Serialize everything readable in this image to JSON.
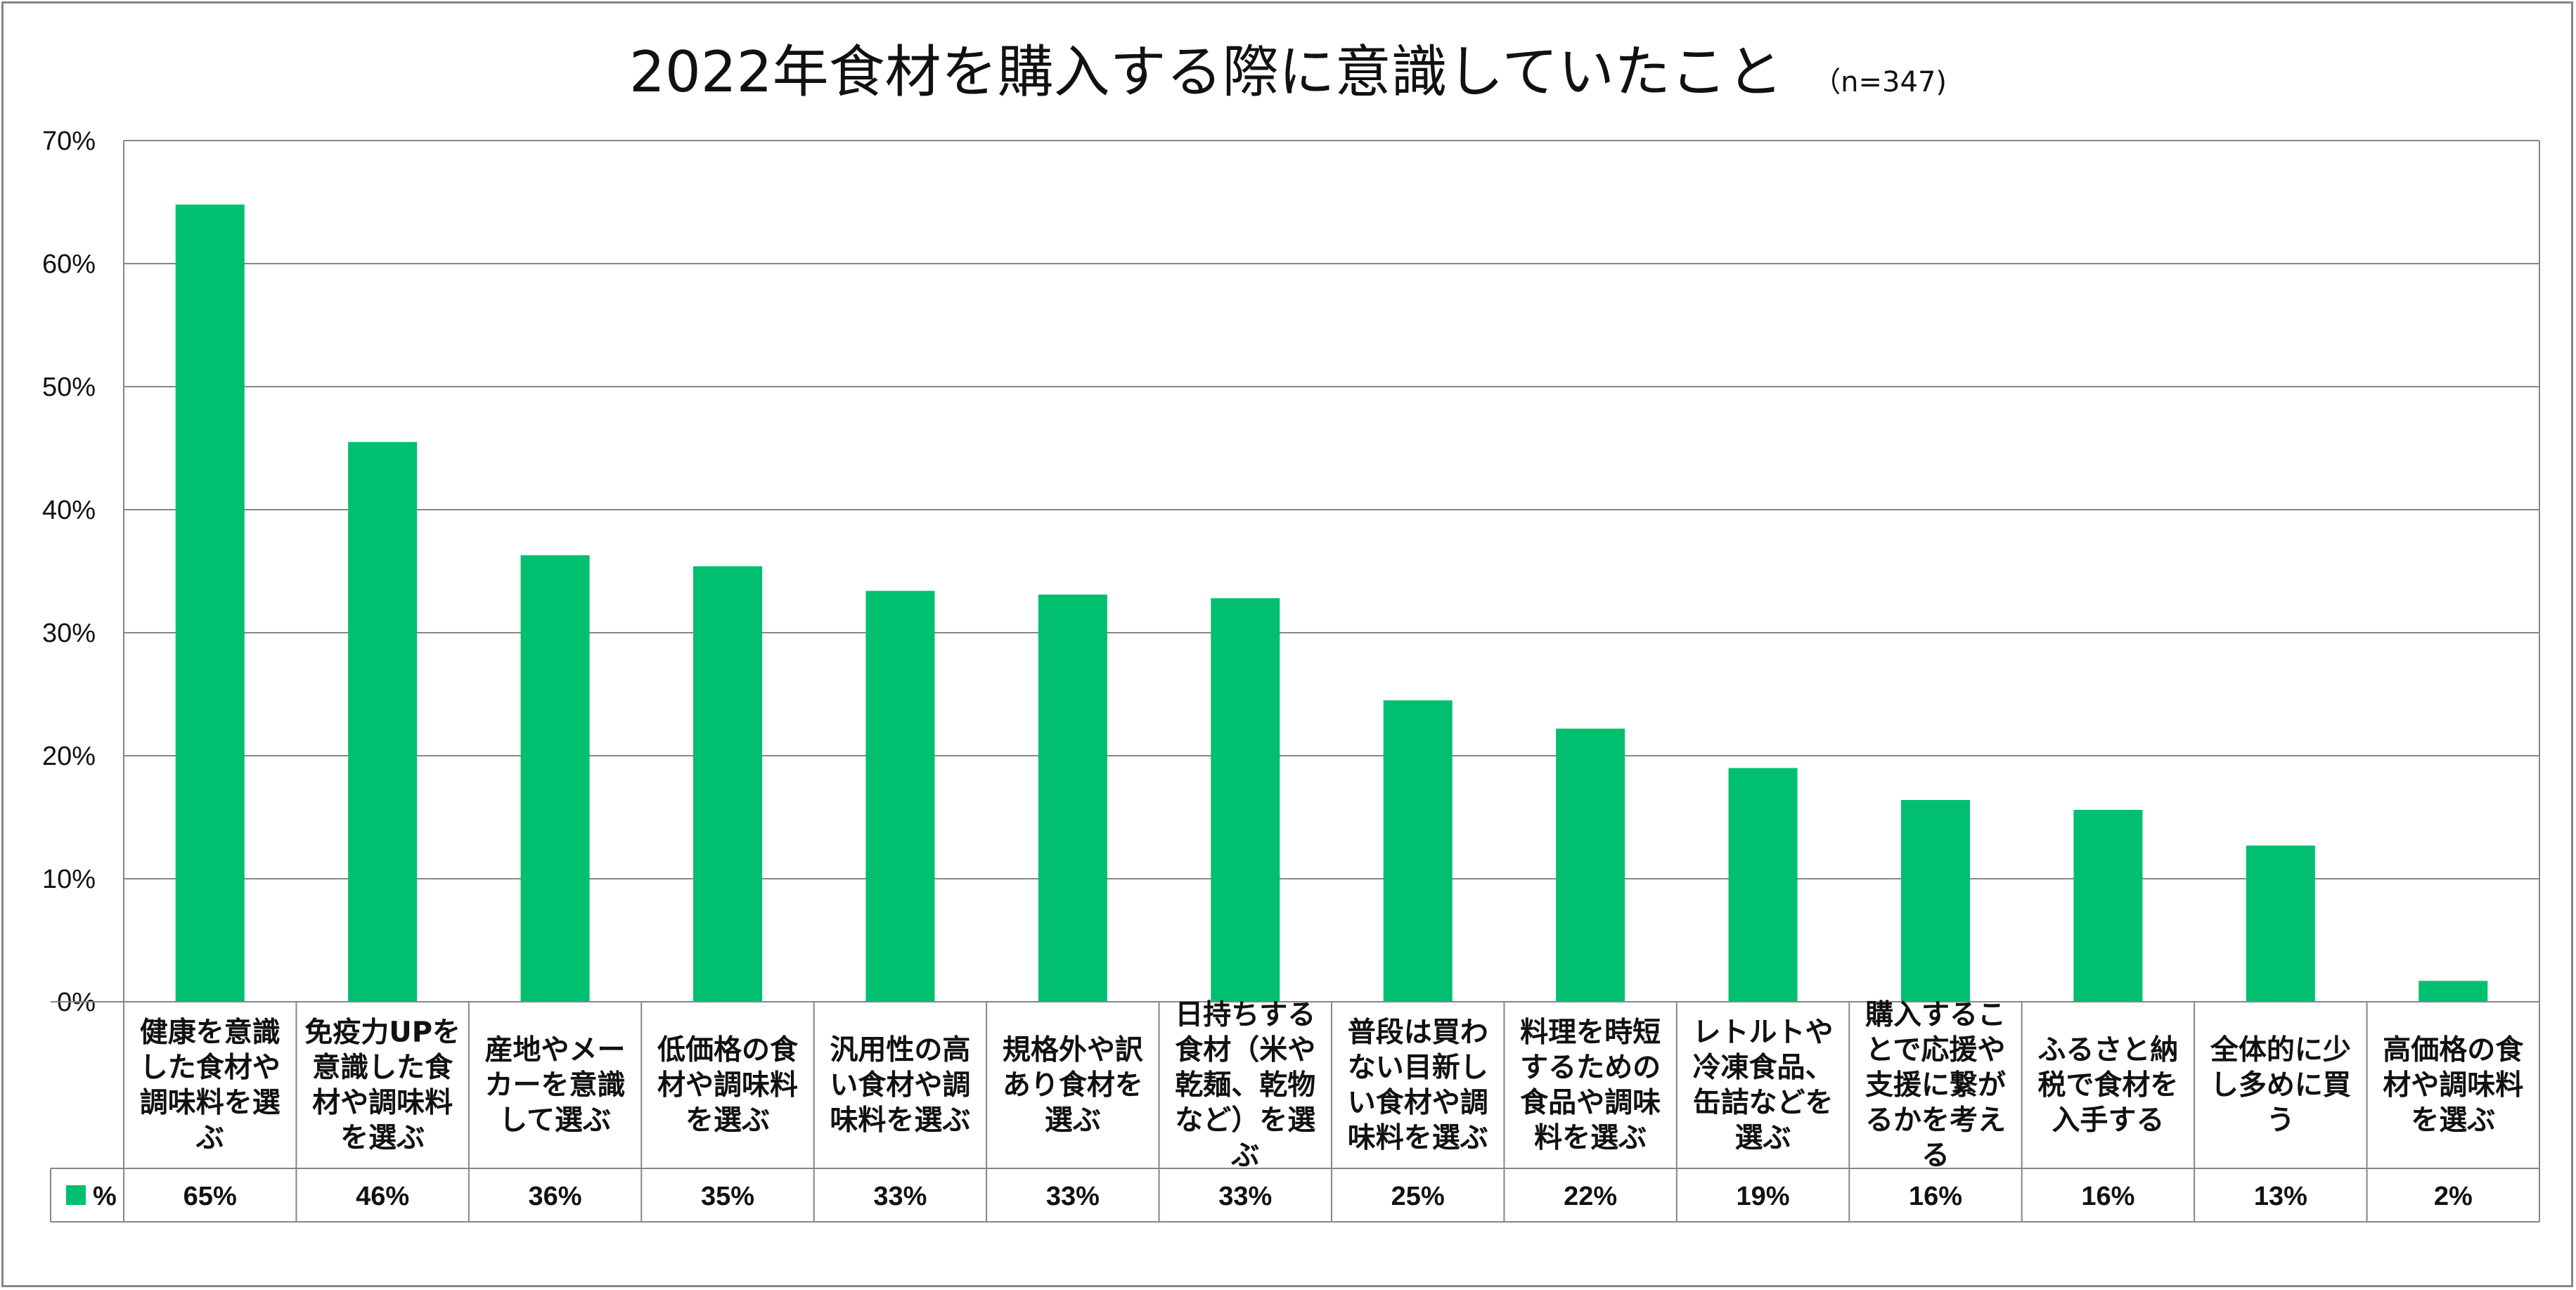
{
  "chart_data": {
    "type": "bar",
    "title": "2022年食材を購入する際に意識していたこと",
    "subtitle": "（n=347)",
    "ylim": [
      0,
      70
    ],
    "yticks": [
      "0%",
      "10%",
      "20%",
      "30%",
      "40%",
      "50%",
      "60%",
      "70%"
    ],
    "series": [
      {
        "name": "%",
        "color": "#00BF6F",
        "values": [
          64.8,
          45.5,
          36.3,
          35.4,
          33.4,
          33.1,
          32.8,
          24.5,
          22.2,
          19.0,
          16.4,
          15.6,
          12.7,
          1.7
        ],
        "labels": [
          "65%",
          "46%",
          "36%",
          "35%",
          "33%",
          "33%",
          "33%",
          "25%",
          "22%",
          "19%",
          "16%",
          "16%",
          "13%",
          "2%"
        ]
      }
    ],
    "categories": [
      "健康を意識した食材や調味料を選ぶ",
      "免疫力UPを意識した食材や調味料を選ぶ",
      "産地やメーカーを意識して選ぶ",
      "低価格の食材や調味料を選ぶ",
      "汎用性の高い食材や調味料を選ぶ",
      "規格外や訳あり食材を選ぶ",
      "日持ちする食材（米や乾麺、乾物など）を選ぶ",
      "普段は買わない目新しい食材や調味料を選ぶ",
      "料理を時短するための食品や調味料を選ぶ",
      "レトルトや冷凍食品、缶詰などを選ぶ",
      "購入することで応援や支援に繋がるかを考える",
      "ふるさと納税で食材を入手する",
      "全体的に少し多めに買う",
      "高価格の食材や調味料を選ぶ"
    ],
    "category_lines": [
      [
        "健康を意識",
        "した食材や",
        "調味料を選",
        "ぶ"
      ],
      [
        "免疫力UPを",
        "意識した食",
        "材や調味料",
        "を選ぶ"
      ],
      [
        "産地やメー",
        "カーを意識",
        "して選ぶ"
      ],
      [
        "低価格の食",
        "材や調味料",
        "を選ぶ"
      ],
      [
        "汎用性の高",
        "い食材や調",
        "味料を選ぶ"
      ],
      [
        "規格外や訳",
        "あり食材を",
        "選ぶ"
      ],
      [
        "日持ちする",
        "食材（米や",
        "乾麺、乾物",
        "など）を選",
        "ぶ"
      ],
      [
        "普段は買わ",
        "ない目新し",
        "い食材や調",
        "味料を選ぶ"
      ],
      [
        "料理を時短",
        "するための",
        "食品や調味",
        "料を選ぶ"
      ],
      [
        "レトルトや",
        "冷凍食品、",
        "缶詰などを",
        "選ぶ"
      ],
      [
        "購入するこ",
        "とで応援や",
        "支援に繋が",
        "るかを考え",
        "る"
      ],
      [
        "ふるさと納",
        "税で食材を",
        "入手する"
      ],
      [
        "全体的に少",
        "し多めに買",
        "う"
      ],
      [
        "高価格の食",
        "材や調味料",
        "を選ぶ"
      ]
    ],
    "legend": "%",
    "grid": true
  }
}
